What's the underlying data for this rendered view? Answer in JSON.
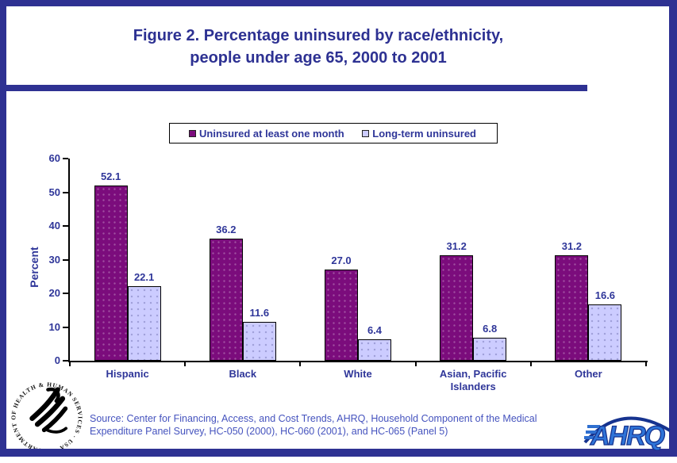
{
  "title": {
    "line1": "Figure 2. Percentage uninsured by race/ethnicity,",
    "line2": "people under age 65, 2000 to 2001"
  },
  "chart_data": {
    "type": "bar",
    "categories": [
      "Hispanic",
      "Black",
      "White",
      "Asian, Pacific Islanders",
      "Other"
    ],
    "series": [
      {
        "name": "Uninsured at least one month",
        "color": "#7b0c7c",
        "values": [
          52.1,
          36.2,
          27.0,
          31.2,
          31.2
        ]
      },
      {
        "name": "Long-term uninsured",
        "color": "#ccccff",
        "values": [
          22.1,
          11.6,
          6.4,
          6.8,
          16.6
        ]
      }
    ],
    "xlabel": "",
    "ylabel": "Percent",
    "ylim": [
      0,
      60
    ],
    "yticks": [
      0,
      10,
      20,
      30,
      40,
      50,
      60
    ],
    "grid": false,
    "legend_position": "top-center",
    "value_labels_decimals": 1
  },
  "source": {
    "line1": "Source: Center for Financing, Access, and Cost Trends, AHRQ, Household Component of the Medical",
    "line2": "Expenditure Panel Survey, HC-050 (2000), HC-060 (2001), and HC-065 (Panel 5)"
  },
  "logos": {
    "hhs_seal_text": "DEPARTMENT OF HEALTH & HUMAN SERVICES · USA",
    "ahrq_text": "AHRQ"
  },
  "colors": {
    "frame_blue": "#2e3192",
    "title_text": "#2d3192",
    "chart_text": "#2f3699",
    "source_text": "#4553be",
    "bar_uninsured_month": "#7b0c7c",
    "bar_long_term": "#ccccff"
  }
}
